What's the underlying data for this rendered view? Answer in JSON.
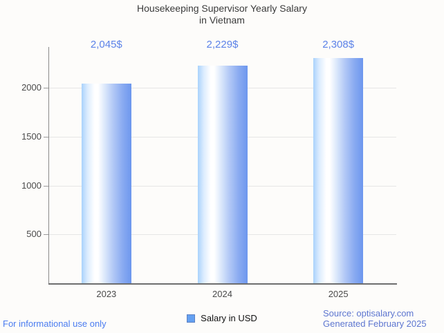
{
  "title": "Housekeeping Supervisor Yearly Salary\nin Vietnam",
  "chart_data": {
    "type": "bar",
    "title": "Housekeeping Supervisor Yearly Salary in Vietnam",
    "categories": [
      "2023",
      "2024",
      "2025"
    ],
    "values": [
      2045,
      2229,
      2308
    ],
    "value_labels": [
      "2,045$",
      "2,229$",
      "2,308$"
    ],
    "series": [
      {
        "name": "Salary in USD",
        "values": [
          2045,
          2229,
          2308
        ]
      }
    ],
    "xlabel": "",
    "ylabel": "",
    "ylim": [
      0,
      2420
    ],
    "yticks": [
      500,
      1000,
      1500,
      2000
    ],
    "grid": true,
    "legend_position": "bottom-center"
  },
  "legend": {
    "label": "Salary in USD"
  },
  "footer": {
    "disclaimer": "For informational use only",
    "source_line1": "Source: optisalary.com",
    "source_line2": "Generated February 2025"
  },
  "colors": {
    "value_label": "#5b82e8",
    "bar_gradient_edge_left": "#a9d2fc",
    "bar_gradient_middle": "#ffffff",
    "bar_gradient_edge_right": "#6d97ee",
    "legend_swatch": "#64a0f1",
    "gridline": "#e6e6e6",
    "axis": "#8a8a8a",
    "title_text": "#3b3b3b",
    "tick_text": "#4a4a4a",
    "disclaimer_text": "#4a7cf0",
    "source_text": "#5d76d0",
    "background": "#fdfcfa"
  }
}
